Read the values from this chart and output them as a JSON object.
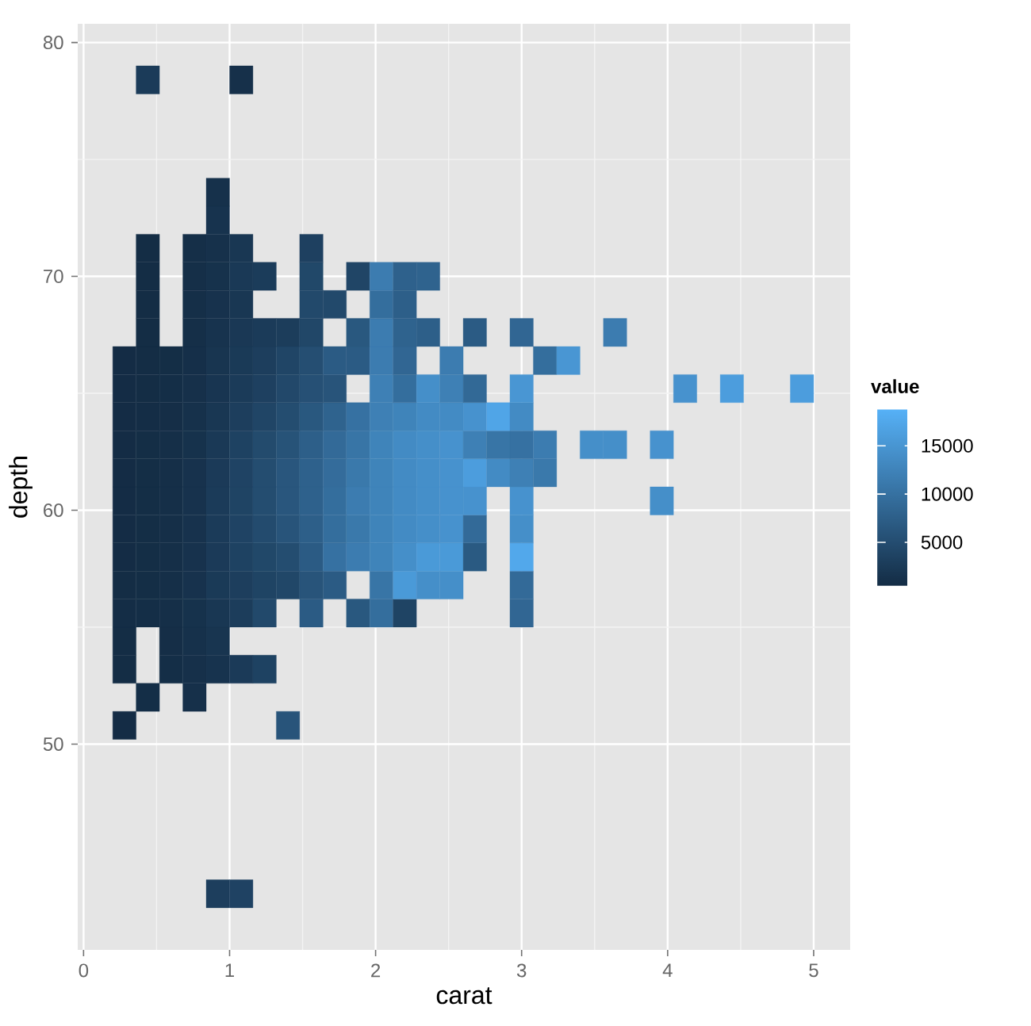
{
  "chart_data": {
    "type": "scatter",
    "xlabel": "carat",
    "ylabel": "depth",
    "clabel": "value",
    "marker": "square",
    "grid": true,
    "xlim": [
      -0.04,
      5.25
    ],
    "ylim": [
      41.2,
      80.8
    ],
    "xticks": [
      0,
      1,
      2,
      3,
      4,
      5
    ],
    "yticks": [
      50,
      60,
      70,
      80
    ],
    "clim": [
      400,
      18800
    ],
    "cticks": [
      5000,
      10000,
      15000
    ],
    "x": [
      0.92,
      1.08,
      0.28,
      1.4,
      0.44,
      0.76,
      0.28,
      0.6,
      0.76,
      0.92,
      1.08,
      1.24,
      0.28,
      0.6,
      0.76,
      0.92,
      0.28,
      0.44,
      0.6,
      0.76,
      0.92,
      1.08,
      1.24,
      1.56,
      1.88,
      2.04,
      2.2,
      3.0,
      0.28,
      0.44,
      0.6,
      0.76,
      0.92,
      1.08,
      1.24,
      1.4,
      1.56,
      1.72,
      2.04,
      2.2,
      2.36,
      2.52,
      3.0,
      0.28,
      0.44,
      0.6,
      0.76,
      0.92,
      1.08,
      1.24,
      1.4,
      1.56,
      1.72,
      1.88,
      2.04,
      2.2,
      2.36,
      2.52,
      2.68,
      3.0,
      0.28,
      0.44,
      0.6,
      0.76,
      0.92,
      1.08,
      1.24,
      1.4,
      1.56,
      1.72,
      1.88,
      2.04,
      2.2,
      2.36,
      2.52,
      2.68,
      3.0,
      0.28,
      0.44,
      0.6,
      0.76,
      0.92,
      1.08,
      1.24,
      1.4,
      1.56,
      1.72,
      1.88,
      2.04,
      2.2,
      2.36,
      2.52,
      2.68,
      3.0,
      3.96,
      0.28,
      0.44,
      0.6,
      0.76,
      0.92,
      1.08,
      1.24,
      1.4,
      1.56,
      1.72,
      1.88,
      2.04,
      2.2,
      2.36,
      2.52,
      2.68,
      2.84,
      3.0,
      3.16,
      0.28,
      0.44,
      0.6,
      0.76,
      0.92,
      1.08,
      1.24,
      1.4,
      1.56,
      1.72,
      1.88,
      2.04,
      2.2,
      2.36,
      2.52,
      2.68,
      2.84,
      3.0,
      3.16,
      3.48,
      3.64,
      3.96,
      0.28,
      0.44,
      0.6,
      0.76,
      0.92,
      1.08,
      1.24,
      1.4,
      1.56,
      1.72,
      1.88,
      2.04,
      2.2,
      2.36,
      2.52,
      2.68,
      2.84,
      3.0,
      0.28,
      0.44,
      0.6,
      0.76,
      0.92,
      1.08,
      1.24,
      1.4,
      1.56,
      1.72,
      2.04,
      2.2,
      2.36,
      2.52,
      2.68,
      3.0,
      4.12,
      4.44,
      4.92,
      0.28,
      0.44,
      0.6,
      0.76,
      0.92,
      1.08,
      1.24,
      1.4,
      1.56,
      1.72,
      1.88,
      2.04,
      2.2,
      2.52,
      3.16,
      3.32,
      0.44,
      0.76,
      0.92,
      1.08,
      1.24,
      1.4,
      1.56,
      1.88,
      2.04,
      2.2,
      2.36,
      2.68,
      3.0,
      3.64,
      0.44,
      0.76,
      0.92,
      1.08,
      1.56,
      1.72,
      2.04,
      2.2,
      0.44,
      0.76,
      0.92,
      1.08,
      1.24,
      1.56,
      1.88,
      2.04,
      2.2,
      2.36,
      0.44,
      0.76,
      0.92,
      1.08,
      1.56,
      0.92,
      0.92,
      0.44,
      1.08
    ],
    "values": [
      43.6,
      43.6,
      50.8,
      50.8,
      52.0,
      52.0,
      53.2,
      53.2,
      53.2,
      53.2,
      53.2,
      53.2,
      54.4,
      54.4,
      54.4,
      54.4,
      55.6,
      55.6,
      55.6,
      55.6,
      55.6,
      55.6,
      55.6,
      55.6,
      55.6,
      55.6,
      55.6,
      55.6,
      56.8,
      56.8,
      56.8,
      56.8,
      56.8,
      56.8,
      56.8,
      56.8,
      56.8,
      56.8,
      56.8,
      56.8,
      56.8,
      56.8,
      56.8,
      58.0,
      58.0,
      58.0,
      58.0,
      58.0,
      58.0,
      58.0,
      58.0,
      58.0,
      58.0,
      58.0,
      58.0,
      58.0,
      58.0,
      58.0,
      58.0,
      58.0,
      59.2,
      59.2,
      59.2,
      59.2,
      59.2,
      59.2,
      59.2,
      59.2,
      59.2,
      59.2,
      59.2,
      59.2,
      59.2,
      59.2,
      59.2,
      59.2,
      59.2,
      60.4,
      60.4,
      60.4,
      60.4,
      60.4,
      60.4,
      60.4,
      60.4,
      60.4,
      60.4,
      60.4,
      60.4,
      60.4,
      60.4,
      60.4,
      60.4,
      60.4,
      60.4,
      61.6,
      61.6,
      61.6,
      61.6,
      61.6,
      61.6,
      61.6,
      61.6,
      61.6,
      61.6,
      61.6,
      61.6,
      61.6,
      61.6,
      61.6,
      61.6,
      61.6,
      61.6,
      61.6,
      62.8,
      62.8,
      62.8,
      62.8,
      62.8,
      62.8,
      62.8,
      62.8,
      62.8,
      62.8,
      62.8,
      62.8,
      62.8,
      62.8,
      62.8,
      62.8,
      62.8,
      62.8,
      62.8,
      62.8,
      62.8,
      62.8,
      64.0,
      64.0,
      64.0,
      64.0,
      64.0,
      64.0,
      64.0,
      64.0,
      64.0,
      64.0,
      64.0,
      64.0,
      64.0,
      64.0,
      64.0,
      64.0,
      64.0,
      64.0,
      65.2,
      65.2,
      65.2,
      65.2,
      65.2,
      65.2,
      65.2,
      65.2,
      65.2,
      65.2,
      65.2,
      65.2,
      65.2,
      65.2,
      65.2,
      65.2,
      65.2,
      65.2,
      65.2,
      66.4,
      66.4,
      66.4,
      66.4,
      66.4,
      66.4,
      66.4,
      66.4,
      66.4,
      66.4,
      66.4,
      66.4,
      66.4,
      66.4,
      66.4,
      66.4,
      67.6,
      67.6,
      67.6,
      67.6,
      67.6,
      67.6,
      67.6,
      67.6,
      67.6,
      67.6,
      67.6,
      67.6,
      67.6,
      67.6,
      68.8,
      68.8,
      68.8,
      68.8,
      68.8,
      68.8,
      68.8,
      68.8,
      70.0,
      70.0,
      70.0,
      70.0,
      70.0,
      70.0,
      70.0,
      70.0,
      70.0,
      70.0,
      71.2,
      71.2,
      71.2,
      71.2,
      71.2,
      72.4,
      73.6,
      78.4,
      78.4
    ],
    "cvalues": [
      3000,
      3600,
      600,
      6000,
      800,
      1100,
      650,
      800,
      1100,
      1500,
      2500,
      3500,
      650,
      850,
      1200,
      1700,
      700,
      800,
      900,
      1300,
      2000,
      2800,
      4500,
      7000,
      6500,
      9500,
      3800,
      8500,
      650,
      750,
      900,
      1400,
      2400,
      3000,
      3800,
      4200,
      6000,
      7000,
      10500,
      15500,
      14000,
      14000,
      9000,
      600,
      750,
      900,
      1400,
      2500,
      3500,
      4300,
      5000,
      7000,
      10000,
      11500,
      12500,
      14000,
      15500,
      15500,
      6800,
      17500,
      600,
      750,
      900,
      1400,
      2600,
      3700,
      4800,
      6000,
      7500,
      9500,
      11000,
      12500,
      13500,
      14000,
      14500,
      9000,
      14000,
      600,
      750,
      900,
      1400,
      2600,
      3800,
      5000,
      6300,
      7800,
      9500,
      11500,
      12500,
      13500,
      14000,
      14500,
      14500,
      14500,
      14000,
      600,
      750,
      900,
      1400,
      2500,
      3700,
      5000,
      6300,
      7800,
      9300,
      11000,
      12500,
      13500,
      14000,
      14500,
      16000,
      13500,
      12000,
      11000,
      600,
      750,
      900,
      1300,
      2300,
      3500,
      4700,
      5800,
      7500,
      9000,
      10500,
      12500,
      13500,
      14000,
      14500,
      12000,
      10500,
      10000,
      11500,
      14000,
      14000,
      14500,
      600,
      700,
      850,
      1200,
      2000,
      3000,
      4000,
      5000,
      6500,
      8000,
      10000,
      12000,
      12500,
      13500,
      13500,
      14500,
      17000,
      13500,
      600,
      650,
      800,
      1100,
      1800,
      2600,
      3300,
      4400,
      5500,
      6000,
      12000,
      9500,
      14000,
      12000,
      8800,
      15000,
      14500,
      16000,
      16000,
      600,
      650,
      750,
      1000,
      1700,
      2400,
      3000,
      4000,
      5200,
      7000,
      7000,
      11500,
      8500,
      11500,
      9500,
      15000,
      650,
      900,
      1500,
      2200,
      2600,
      2800,
      4200,
      6500,
      11500,
      8000,
      7500,
      7000,
      8500,
      11500,
      650,
      900,
      1400,
      2000,
      4500,
      4500,
      9500,
      7500,
      650,
      900,
      1300,
      2300,
      2700,
      4300,
      4000,
      11500,
      7800,
      8000,
      650,
      900,
      1200,
      2000,
      3300,
      1500,
      1200,
      2600,
      1100
    ]
  }
}
